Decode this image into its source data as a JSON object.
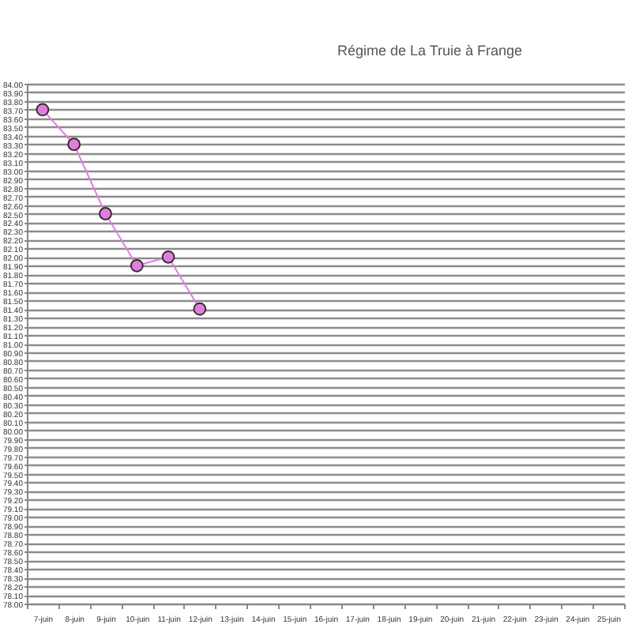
{
  "chart_data": {
    "type": "line",
    "title": "Régime de La Truie à Frange",
    "categories": [
      "7-juin",
      "8-juin",
      "9-juin",
      "10-juin",
      "11-juin",
      "12-juin",
      "13-juin",
      "14-juin",
      "15-juin",
      "16-juin",
      "17-juin",
      "18-juin",
      "19-juin",
      "20-juin",
      "21-juin",
      "22-juin",
      "23-juin",
      "24-juin",
      "25-juin"
    ],
    "series": [
      {
        "color": "#e07ee0",
        "values": [
          83.7,
          83.3,
          82.5,
          81.9,
          82.0,
          81.4,
          null,
          null,
          null,
          null,
          null,
          null,
          null,
          null,
          null,
          null,
          null,
          null,
          null
        ]
      }
    ],
    "ylim": [
      78,
      84
    ],
    "yticks": [
      {
        "value": 78,
        "label": "78.00"
      },
      {
        "value": 78.1,
        "label": "78.10"
      },
      {
        "value": 78.2,
        "label": "78.20"
      },
      {
        "value": 78.3,
        "label": "78.30"
      },
      {
        "value": 78.4,
        "label": "78.40"
      },
      {
        "value": 78.5,
        "label": "78.50"
      },
      {
        "value": 78.6,
        "label": "78.60"
      },
      {
        "value": 78.7,
        "label": "78.70"
      },
      {
        "value": 78.8,
        "label": "78.80"
      },
      {
        "value": 78.9,
        "label": "78.90"
      },
      {
        "value": 79,
        "label": "79.00"
      },
      {
        "value": 79.1,
        "label": "79.10"
      },
      {
        "value": 79.2,
        "label": "79.20"
      },
      {
        "value": 79.3,
        "label": "79.30"
      },
      {
        "value": 79.4,
        "label": "79.40"
      },
      {
        "value": 79.5,
        "label": "79.50"
      },
      {
        "value": 79.6,
        "label": "79.60"
      },
      {
        "value": 79.7,
        "label": "79.70"
      },
      {
        "value": 79.8,
        "label": "79.80"
      },
      {
        "value": 79.9,
        "label": "79.90"
      },
      {
        "value": 80,
        "label": "80.00"
      },
      {
        "value": 80.1,
        "label": "80.10"
      },
      {
        "value": 80.2,
        "label": "80.20"
      },
      {
        "value": 80.3,
        "label": "80.30"
      },
      {
        "value": 80.4,
        "label": "80.40"
      },
      {
        "value": 80.5,
        "label": "80.50"
      },
      {
        "value": 80.6,
        "label": "80.60"
      },
      {
        "value": 80.7,
        "label": "80.70"
      },
      {
        "value": 80.8,
        "label": "80.80"
      },
      {
        "value": 80.9,
        "label": "80.90"
      },
      {
        "value": 81,
        "label": "81.00"
      },
      {
        "value": 81.1,
        "label": "81.10"
      },
      {
        "value": 81.2,
        "label": "81.20"
      },
      {
        "value": 81.3,
        "label": "81.30"
      },
      {
        "value": 81.4,
        "label": "81.40"
      },
      {
        "value": 81.5,
        "label": "81.50"
      },
      {
        "value": 81.6,
        "label": "81.60"
      },
      {
        "value": 81.7,
        "label": "81.70"
      },
      {
        "value": 81.8,
        "label": "81.80"
      },
      {
        "value": 81.9,
        "label": "81.90"
      },
      {
        "value": 82,
        "label": "82.00"
      },
      {
        "value": 82.1,
        "label": "82.10"
      },
      {
        "value": 82.2,
        "label": "82.20"
      },
      {
        "value": 82.3,
        "label": "82.30"
      },
      {
        "value": 82.4,
        "label": "82.40"
      },
      {
        "value": 82.5,
        "label": "82.50"
      },
      {
        "value": 82.6,
        "label": "82.60"
      },
      {
        "value": 82.7,
        "label": "82.70"
      },
      {
        "value": 82.8,
        "label": "82.80"
      },
      {
        "value": 82.9,
        "label": "82.90"
      },
      {
        "value": 83,
        "label": "83.00"
      },
      {
        "value": 83.1,
        "label": "83.10"
      },
      {
        "value": 83.2,
        "label": "83.20"
      },
      {
        "value": 83.3,
        "label": "83.30"
      },
      {
        "value": 83.4,
        "label": "83.40"
      },
      {
        "value": 83.5,
        "label": "83.50"
      },
      {
        "value": 83.6,
        "label": "83.60"
      },
      {
        "value": 83.7,
        "label": "83.70"
      },
      {
        "value": 83.8,
        "label": "83.80"
      },
      {
        "value": 83.9,
        "label": "83.90"
      },
      {
        "value": 84,
        "label": "84.00"
      }
    ],
    "grid": "y",
    "marker": "circle"
  }
}
